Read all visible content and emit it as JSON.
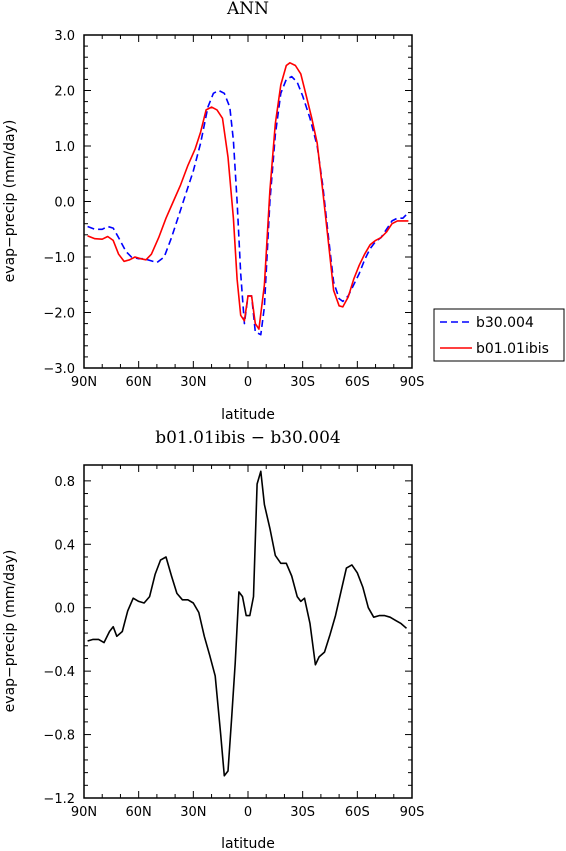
{
  "chart_data": [
    {
      "type": "line",
      "title": "ANN",
      "xlabel": "latitude",
      "ylabel": "evap−precip (mm/day)",
      "xlim": [
        -90,
        90
      ],
      "ylim": [
        -3.0,
        3.0
      ],
      "x_ticks": [
        -90,
        -60,
        -30,
        0,
        30,
        60,
        90
      ],
      "x_tick_labels": [
        "90N",
        "60N",
        "30N",
        "0",
        "30S",
        "60S",
        "90S"
      ],
      "y_ticks": [
        -3.0,
        -2.0,
        -1.0,
        0.0,
        1.0,
        2.0,
        3.0
      ],
      "y_tick_labels": [
        "−3.0",
        "−2.0",
        "−1.0",
        "0.0",
        "1.0",
        "2.0",
        "3.0"
      ],
      "grid": false,
      "legend_position": "right-outside-bottom",
      "series": [
        {
          "name": "b30.004",
          "color": "#0000ff",
          "dash": "dashed",
          "points": [
            [
              -88,
              -0.45
            ],
            [
              -84,
              -0.5
            ],
            [
              -80,
              -0.5
            ],
            [
              -77,
              -0.45
            ],
            [
              -74,
              -0.48
            ],
            [
              -71,
              -0.65
            ],
            [
              -67,
              -0.9
            ],
            [
              -64,
              -1.0
            ],
            [
              -60,
              -1.03
            ],
            [
              -57,
              -1.03
            ],
            [
              -53,
              -1.07
            ],
            [
              -50,
              -1.1
            ],
            [
              -46,
              -1.0
            ],
            [
              -42,
              -0.65
            ],
            [
              -38,
              -0.25
            ],
            [
              -34,
              0.15
            ],
            [
              -30,
              0.55
            ],
            [
              -26,
              1.05
            ],
            [
              -22,
              1.7
            ],
            [
              -19,
              1.95
            ],
            [
              -16,
              2.0
            ],
            [
              -13,
              1.95
            ],
            [
              -10,
              1.7
            ],
            [
              -8,
              1.1
            ],
            [
              -6,
              0.0
            ],
            [
              -4,
              -1.3
            ],
            [
              -2,
              -2.2
            ],
            [
              0,
              -1.7
            ],
            [
              2,
              -1.7
            ],
            [
              4,
              -2.35
            ],
            [
              7,
              -2.4
            ],
            [
              9,
              -1.9
            ],
            [
              12,
              0.0
            ],
            [
              15,
              1.2
            ],
            [
              18,
              1.95
            ],
            [
              21,
              2.2
            ],
            [
              24,
              2.25
            ],
            [
              27,
              2.15
            ],
            [
              30,
              1.9
            ],
            [
              34,
              1.5
            ],
            [
              38,
              1.0
            ],
            [
              41,
              0.3
            ],
            [
              44,
              -0.6
            ],
            [
              47,
              -1.45
            ],
            [
              50,
              -1.75
            ],
            [
              52,
              -1.8
            ],
            [
              55,
              -1.7
            ],
            [
              58,
              -1.5
            ],
            [
              61,
              -1.3
            ],
            [
              64,
              -1.05
            ],
            [
              67,
              -0.85
            ],
            [
              70,
              -0.72
            ],
            [
              73,
              -0.65
            ],
            [
              76,
              -0.5
            ],
            [
              79,
              -0.35
            ],
            [
              82,
              -0.3
            ],
            [
              85,
              -0.3
            ],
            [
              88,
              -0.2
            ]
          ]
        },
        {
          "name": "b01.01ibis",
          "color": "#ff0000",
          "dash": "solid",
          "points": [
            [
              -88,
              -0.62
            ],
            [
              -84,
              -0.67
            ],
            [
              -80,
              -0.68
            ],
            [
              -77,
              -0.63
            ],
            [
              -74,
              -0.7
            ],
            [
              -71,
              -0.95
            ],
            [
              -68,
              -1.08
            ],
            [
              -65,
              -1.05
            ],
            [
              -62,
              -1.0
            ],
            [
              -59,
              -1.03
            ],
            [
              -56,
              -1.05
            ],
            [
              -53,
              -0.95
            ],
            [
              -49,
              -0.65
            ],
            [
              -45,
              -0.3
            ],
            [
              -41,
              0.0
            ],
            [
              -37,
              0.3
            ],
            [
              -33,
              0.65
            ],
            [
              -29,
              0.95
            ],
            [
              -26,
              1.25
            ],
            [
              -23,
              1.65
            ],
            [
              -20,
              1.7
            ],
            [
              -17,
              1.65
            ],
            [
              -14,
              1.5
            ],
            [
              -11,
              0.8
            ],
            [
              -8,
              -0.3
            ],
            [
              -6,
              -1.4
            ],
            [
              -4,
              -2.05
            ],
            [
              -2,
              -2.15
            ],
            [
              0,
              -1.7
            ],
            [
              2,
              -1.7
            ],
            [
              4,
              -2.2
            ],
            [
              6,
              -2.3
            ],
            [
              9,
              -1.5
            ],
            [
              12,
              0.2
            ],
            [
              15,
              1.4
            ],
            [
              18,
              2.1
            ],
            [
              21,
              2.45
            ],
            [
              23,
              2.5
            ],
            [
              26,
              2.45
            ],
            [
              29,
              2.3
            ],
            [
              32,
              1.9
            ],
            [
              35,
              1.5
            ],
            [
              38,
              1.05
            ],
            [
              41,
              0.2
            ],
            [
              44,
              -0.7
            ],
            [
              47,
              -1.6
            ],
            [
              50,
              -1.88
            ],
            [
              52,
              -1.9
            ],
            [
              55,
              -1.72
            ],
            [
              58,
              -1.4
            ],
            [
              61,
              -1.15
            ],
            [
              64,
              -0.95
            ],
            [
              67,
              -0.78
            ],
            [
              70,
              -0.7
            ],
            [
              73,
              -0.65
            ],
            [
              76,
              -0.55
            ],
            [
              79,
              -0.4
            ],
            [
              82,
              -0.35
            ],
            [
              85,
              -0.35
            ],
            [
              88,
              -0.35
            ]
          ]
        }
      ]
    },
    {
      "type": "line",
      "title": "b01.01ibis − b30.004",
      "xlabel": "latitude",
      "ylabel": "evap−precip (mm/day)",
      "xlim": [
        -90,
        90
      ],
      "ylim": [
        -1.2,
        0.9
      ],
      "x_ticks": [
        -90,
        -60,
        -30,
        0,
        30,
        60,
        90
      ],
      "x_tick_labels": [
        "90N",
        "60N",
        "30N",
        "0",
        "30S",
        "60S",
        "90S"
      ],
      "y_ticks": [
        -1.2,
        -0.8,
        -0.4,
        0.0,
        0.4,
        0.8
      ],
      "y_tick_labels": [
        "−1.2",
        "−0.8",
        "−0.4",
        "0.0",
        "0.4",
        "0.8"
      ],
      "grid": false,
      "series": [
        {
          "color": "#000000",
          "dash": "solid",
          "points": [
            [
              -88,
              -0.21
            ],
            [
              -85,
              -0.2
            ],
            [
              -82,
              -0.2
            ],
            [
              -79,
              -0.22
            ],
            [
              -76,
              -0.15
            ],
            [
              -74,
              -0.12
            ],
            [
              -72,
              -0.18
            ],
            [
              -69,
              -0.15
            ],
            [
              -66,
              -0.02
            ],
            [
              -63,
              0.06
            ],
            [
              -60,
              0.04
            ],
            [
              -57,
              0.03
            ],
            [
              -54,
              0.07
            ],
            [
              -51,
              0.21
            ],
            [
              -48,
              0.3
            ],
            [
              -45,
              0.32
            ],
            [
              -42,
              0.2
            ],
            [
              -39,
              0.09
            ],
            [
              -36,
              0.05
            ],
            [
              -33,
              0.05
            ],
            [
              -30,
              0.03
            ],
            [
              -27,
              -0.03
            ],
            [
              -24,
              -0.18
            ],
            [
              -21,
              -0.3
            ],
            [
              -18,
              -0.43
            ],
            [
              -15,
              -0.8
            ],
            [
              -13,
              -1.06
            ],
            [
              -11,
              -1.03
            ],
            [
              -9,
              -0.7
            ],
            [
              -7,
              -0.35
            ],
            [
              -5,
              0.1
            ],
            [
              -3,
              0.07
            ],
            [
              -1,
              -0.05
            ],
            [
              1,
              -0.05
            ],
            [
              3,
              0.07
            ],
            [
              5,
              0.78
            ],
            [
              7,
              0.86
            ],
            [
              9,
              0.65
            ],
            [
              12,
              0.5
            ],
            [
              15,
              0.33
            ],
            [
              18,
              0.28
            ],
            [
              21,
              0.28
            ],
            [
              24,
              0.2
            ],
            [
              27,
              0.07
            ],
            [
              29,
              0.04
            ],
            [
              31,
              0.06
            ],
            [
              34,
              -0.1
            ],
            [
              37,
              -0.36
            ],
            [
              39,
              -0.31
            ],
            [
              42,
              -0.28
            ],
            [
              45,
              -0.17
            ],
            [
              48,
              -0.05
            ],
            [
              51,
              0.1
            ],
            [
              54,
              0.25
            ],
            [
              57,
              0.27
            ],
            [
              60,
              0.22
            ],
            [
              63,
              0.13
            ],
            [
              66,
              0.0
            ],
            [
              69,
              -0.06
            ],
            [
              72,
              -0.05
            ],
            [
              75,
              -0.05
            ],
            [
              78,
              -0.06
            ],
            [
              81,
              -0.08
            ],
            [
              84,
              -0.1
            ],
            [
              87,
              -0.13
            ]
          ]
        }
      ]
    }
  ]
}
